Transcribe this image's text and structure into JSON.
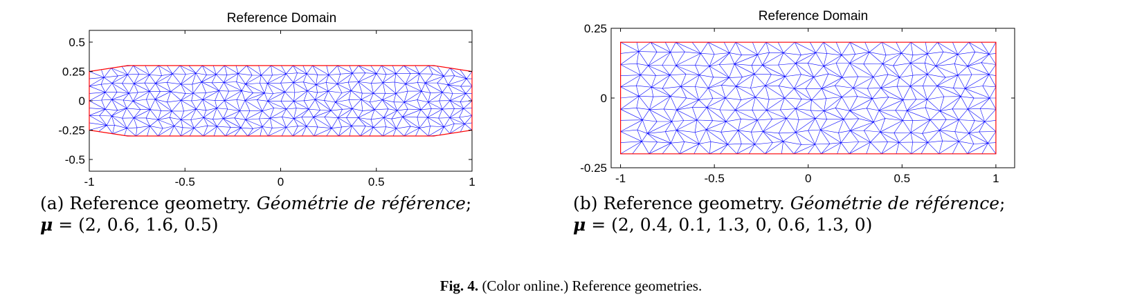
{
  "chart_data": [
    {
      "type": "mesh",
      "title": "Reference Domain",
      "xlim": [
        -1,
        1
      ],
      "ylim": [
        -0.6,
        0.6
      ],
      "xticks": [
        -1,
        -0.5,
        0,
        0.5,
        1
      ],
      "xtick_labels": [
        "-1",
        "-0.5",
        "0",
        "0.5",
        "1"
      ],
      "yticks": [
        -0.5,
        -0.25,
        0,
        0.25,
        0.5
      ],
      "ytick_labels": [
        "-0.5",
        "-0.25",
        "0",
        "0.25",
        "0.5"
      ],
      "boundary": [
        [
          -1,
          -0.25
        ],
        [
          -0.8,
          -0.3
        ],
        [
          0.8,
          -0.3
        ],
        [
          1,
          -0.25
        ],
        [
          1,
          0.25
        ],
        [
          0.8,
          0.3
        ],
        [
          -0.8,
          0.3
        ],
        [
          -1,
          0.25
        ]
      ],
      "boundary_color": "#ff0000",
      "mesh_color": "#0000ff",
      "mesh_resolution": [
        34,
        8
      ]
    },
    {
      "type": "mesh",
      "title": "Reference Domain",
      "xlim": [
        -1.05,
        1.1
      ],
      "ylim": [
        -0.25,
        0.25
      ],
      "xticks": [
        -1,
        -0.5,
        0,
        0.5,
        1
      ],
      "xtick_labels": [
        "-1",
        "-0.5",
        "0",
        "0.5",
        "1"
      ],
      "yticks": [
        -0.25,
        0,
        0.25
      ],
      "ytick_labels": [
        "-0.25",
        "0",
        "0.25"
      ],
      "boundary": [
        [
          -1,
          -0.2
        ],
        [
          1,
          -0.2
        ],
        [
          1,
          0.2
        ],
        [
          -1,
          0.2
        ]
      ],
      "boundary_color": "#ff0000",
      "mesh_color": "#0000ff",
      "mesh_resolution": [
        26,
        10
      ]
    }
  ],
  "captions": {
    "a": {
      "label": "(a)",
      "text": "Reference geometry.",
      "italic": "Géométrie de référence",
      "semicolon": ";",
      "mu": "μ",
      "mu_value": "= (2, 0.6, 1.6, 0.5)"
    },
    "b": {
      "label": "(b)",
      "text": "Reference geometry.",
      "italic": "Géométrie de référence",
      "semicolon": ";",
      "mu": "μ",
      "mu_value": "= (2, 0.4, 0.1, 1.3, 0, 0.6, 1.3, 0)"
    }
  },
  "figure_caption": {
    "label": "Fig. 4.",
    "text": "(Color online.) Reference geometries."
  }
}
